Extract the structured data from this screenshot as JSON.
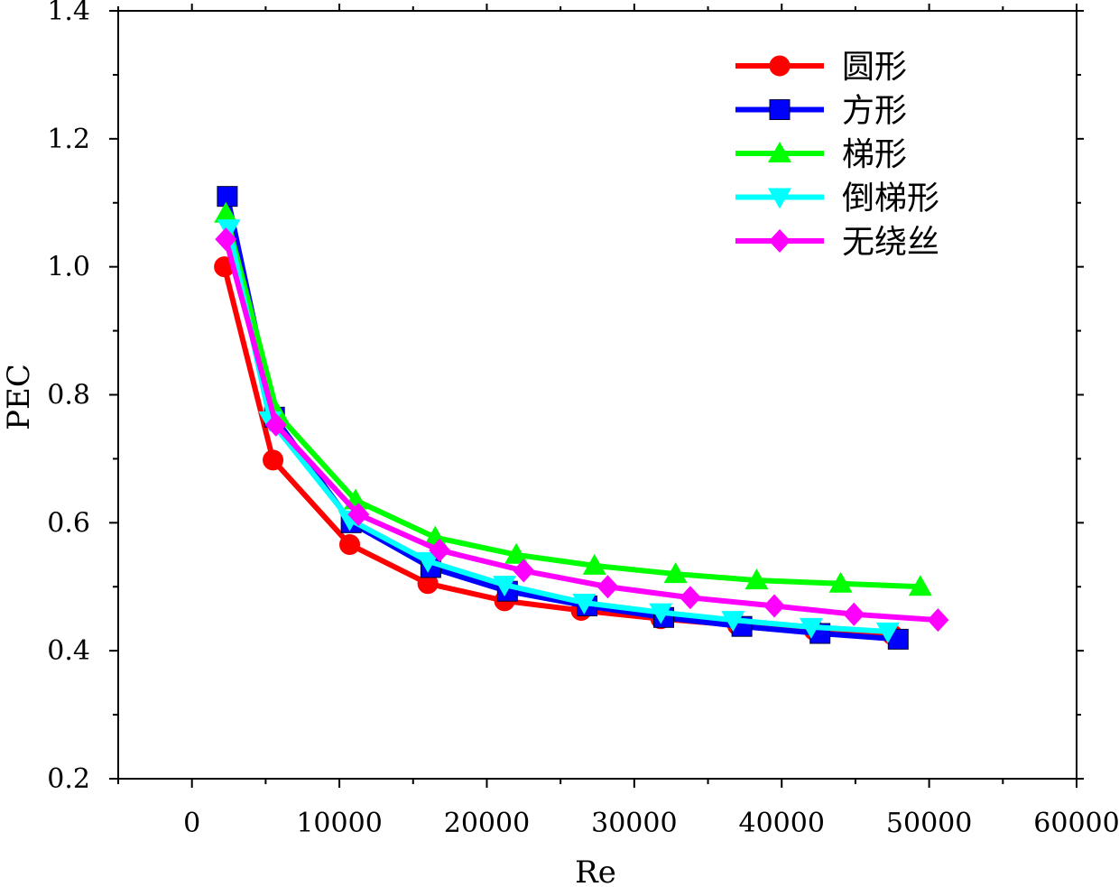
{
  "chart_data": {
    "type": "line",
    "title": "",
    "xlabel": "Re",
    "ylabel": "PEC",
    "xlim": [
      -5000,
      60000
    ],
    "ylim": [
      0.2,
      1.4
    ],
    "xticks": [
      0,
      10000,
      20000,
      30000,
      40000,
      50000,
      60000
    ],
    "xtick_labels": [
      "0",
      "10000",
      "20000",
      "30000",
      "40000",
      "50000",
      "60000"
    ],
    "yticks": [
      0.2,
      0.4,
      0.6,
      0.8,
      1.0,
      1.2,
      1.4
    ],
    "ytick_labels": [
      "0.2",
      "0.4",
      "0.6",
      "0.8",
      "1.0",
      "1.2",
      "1.4"
    ],
    "grid": false,
    "legend_position": "top-right",
    "series": [
      {
        "name": "圆形",
        "color": "#ff0000",
        "marker": "circle",
        "x": [
          2200,
          5500,
          10700,
          16000,
          21200,
          26400,
          31800,
          37000,
          42200,
          47500
        ],
        "y": [
          1.0,
          0.698,
          0.566,
          0.505,
          0.478,
          0.463,
          0.45,
          0.44,
          0.432,
          0.425
        ]
      },
      {
        "name": "方形",
        "color": "#0000ff",
        "marker": "square",
        "x": [
          2400,
          5600,
          10800,
          16200,
          21400,
          26800,
          32000,
          37300,
          42600,
          47900
        ],
        "y": [
          1.11,
          0.765,
          0.6,
          0.53,
          0.493,
          0.47,
          0.452,
          0.438,
          0.427,
          0.418
        ]
      },
      {
        "name": "梯形",
        "color": "#00ff00",
        "marker": "triangle-up",
        "x": [
          2300,
          5800,
          11100,
          16500,
          22000,
          27300,
          32800,
          38300,
          44000,
          49400
        ],
        "y": [
          1.083,
          0.77,
          0.635,
          0.577,
          0.55,
          0.533,
          0.52,
          0.51,
          0.505,
          0.5
        ]
      },
      {
        "name": "倒梯形",
        "color": "#00ffff",
        "marker": "triangle-down",
        "x": [
          2500,
          5300,
          10700,
          16000,
          21200,
          26600,
          31800,
          36700,
          42000,
          47200
        ],
        "y": [
          1.06,
          0.76,
          0.605,
          0.54,
          0.503,
          0.475,
          0.46,
          0.448,
          0.437,
          0.43
        ]
      },
      {
        "name": "无绕丝",
        "color": "#ff00ff",
        "marker": "diamond",
        "x": [
          2300,
          5700,
          11300,
          16800,
          22500,
          28200,
          33800,
          39500,
          44900,
          50600
        ],
        "y": [
          1.043,
          0.753,
          0.613,
          0.557,
          0.525,
          0.5,
          0.483,
          0.47,
          0.457,
          0.448
        ]
      }
    ]
  }
}
